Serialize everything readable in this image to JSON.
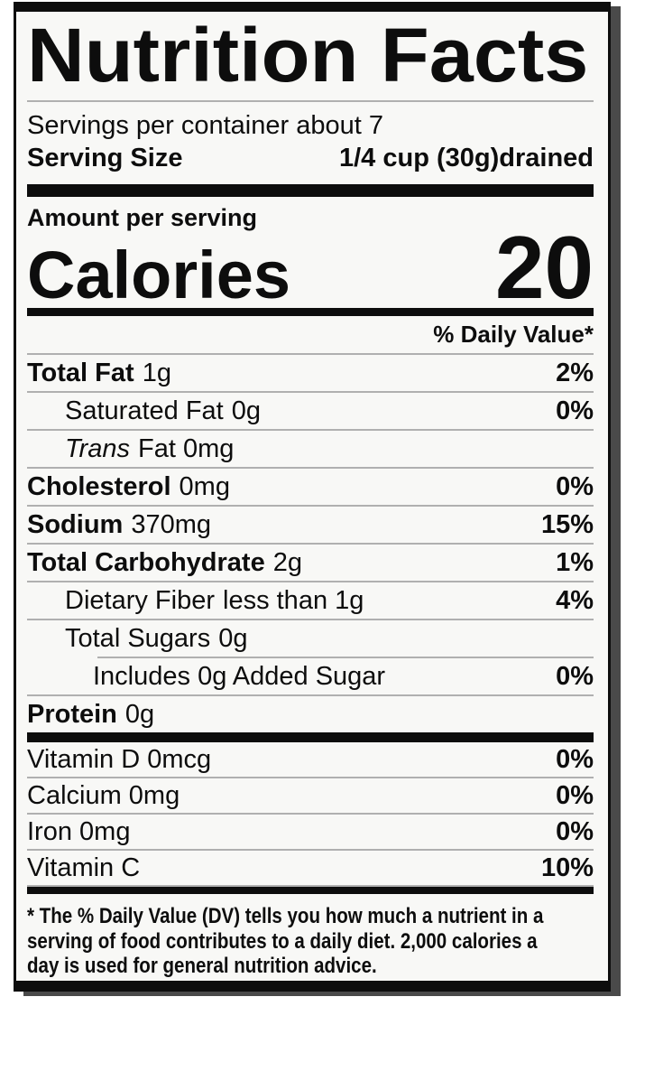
{
  "colors": {
    "black": "#0d0d0d",
    "rule_gray": "#b0b0b0",
    "label_bg": "#f8f8f6",
    "shadow": "#4a4a4a",
    "page_bg": "#ffffff"
  },
  "label": {
    "title": "Nutrition Facts",
    "servings_per_container": "Servings per container about 7",
    "serving_size_label": "Serving Size",
    "serving_size_value": "1/4 cup (30g)drained",
    "amount_per_serving": "Amount per serving",
    "calories_label": "Calories",
    "calories_value": "20",
    "daily_value_header": "% Daily Value*",
    "nutrients": [
      {
        "name": "Total Fat",
        "amount": "1g",
        "dv": "2%"
      },
      {
        "name": "Saturated Fat",
        "amount": "0g",
        "dv": "0%"
      },
      {
        "name": "Trans",
        "amount": "Fat 0mg",
        "dv": ""
      },
      {
        "name": "Cholesterol",
        "amount": "0mg",
        "dv": "0%"
      },
      {
        "name": "Sodium",
        "amount": "370mg",
        "dv": "15%"
      },
      {
        "name": "Total Carbohydrate",
        "amount": "2g",
        "dv": "1%"
      },
      {
        "name": "Dietary Fiber",
        "amount": "less than 1g",
        "dv": "4%"
      },
      {
        "name": "Total Sugars",
        "amount": "0g",
        "dv": ""
      },
      {
        "name": "Includes 0g Added Sugar",
        "amount": "",
        "dv": "0%"
      },
      {
        "name": "Protein",
        "amount": "0g",
        "dv": ""
      }
    ],
    "vitamins": [
      {
        "name": "Vitamin D 0mcg",
        "dv": "0%"
      },
      {
        "name": "Calcium 0mg",
        "dv": "0%"
      },
      {
        "name": "Iron 0mg",
        "dv": "0%"
      },
      {
        "name": "Vitamin C",
        "dv": "10%"
      }
    ],
    "footnote_lines": [
      "* The % Daily Value (DV) tells you how much a nutrient in a",
      "serving of food contributes to a daily diet. 2,000 calories a",
      "day is used for general nutrition advice."
    ]
  }
}
